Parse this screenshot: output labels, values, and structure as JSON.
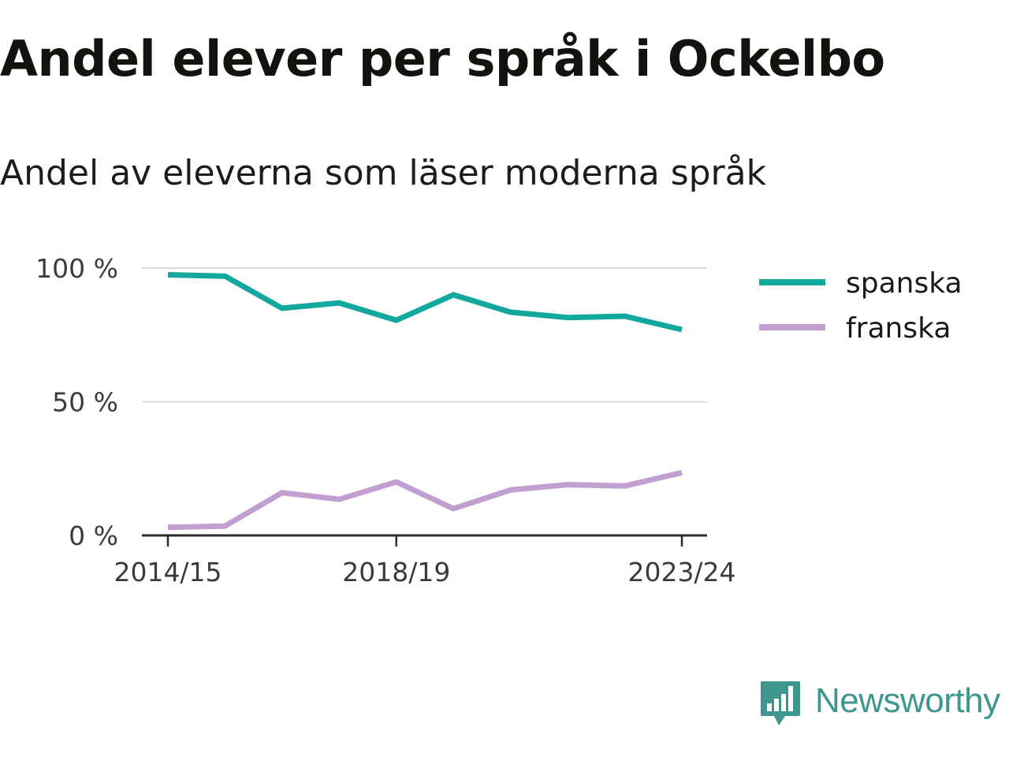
{
  "title": "Andel elever per språk i Ockelbo",
  "subtitle": "Andel av eleverna som läser moderna språk",
  "brand": {
    "name": "Newsworthy",
    "logo_icon": "newsworthy-bar-chart-bubble-icon",
    "color": "#3d978f"
  },
  "chart_data": {
    "type": "line",
    "x": [
      "2014/15",
      "2015/16",
      "2016/17",
      "2017/18",
      "2018/19",
      "2019/20",
      "2020/21",
      "2021/22",
      "2022/23",
      "2023/24"
    ],
    "x_tick_labels": [
      "2014/15",
      "2018/19",
      "2023/24"
    ],
    "y_ticks": [
      0,
      50,
      100
    ],
    "y_tick_labels": [
      "0 %",
      "50 %",
      "100 %"
    ],
    "ylim": [
      0,
      100
    ],
    "grid": true,
    "legend_position": "right",
    "series": [
      {
        "name": "spanska",
        "color": "#13a89e",
        "values": [
          97.5,
          97,
          85,
          87,
          80.5,
          90,
          83.5,
          81.5,
          82,
          77
        ]
      },
      {
        "name": "franska",
        "color": "#c19fd1",
        "values": [
          3,
          3.5,
          16,
          13.5,
          20,
          10,
          17,
          19,
          18.5,
          23.5
        ]
      }
    ]
  }
}
